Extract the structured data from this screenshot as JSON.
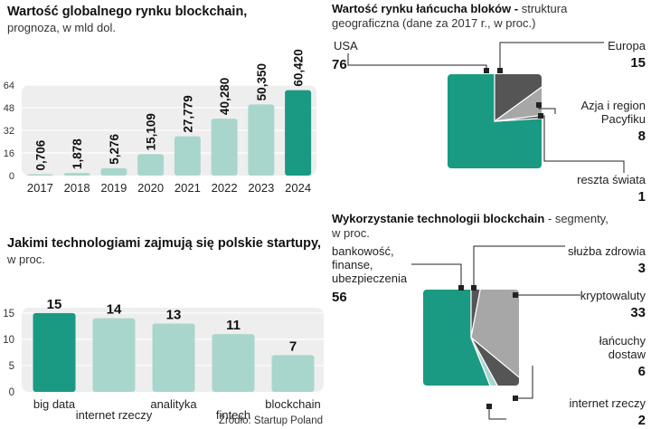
{
  "colors": {
    "teal": "#1a9a82",
    "light_teal": "#a9d6cc",
    "dark_gray": "#555555",
    "mid_gray": "#a7a7a7",
    "panel_bg": "#eeeeee",
    "grid": "#ffffff"
  },
  "chart_data": [
    {
      "id": "market",
      "type": "bar",
      "title": "Wartość globalnego rynku blockchain,",
      "subtitle": "prognoza, w mld dol.",
      "categories": [
        "2017",
        "2018",
        "2019",
        "2020",
        "2021",
        "2022",
        "2023",
        "2024"
      ],
      "values": [
        0.706,
        1.878,
        5.276,
        15.109,
        27.779,
        40.28,
        50.35,
        60.42
      ],
      "value_labels": [
        "0,706",
        "1,878",
        "5,276",
        "15,109",
        "27,779",
        "40,280",
        "50,350",
        "60,420"
      ],
      "yticks": [
        "0",
        "16",
        "32",
        "48",
        "64"
      ],
      "ylim": [
        0,
        64
      ],
      "highlight_index": 7
    },
    {
      "id": "geo",
      "type": "pie",
      "title": "Wartość rynku łańcucha bloków - ",
      "title_rest": "struktura",
      "subtitle": "geograficzna (dane za 2017 r., w proc.)",
      "slices": [
        {
          "label": "USA",
          "value": 76
        },
        {
          "label": "Europa",
          "value": 15
        },
        {
          "label": "Azja i region Pacyfiku",
          "label_lines": [
            "Azja i region",
            "Pacyfiku"
          ],
          "value": 8
        },
        {
          "label": "reszta świata",
          "value": 1
        }
      ]
    },
    {
      "id": "startups",
      "type": "bar",
      "title": "Jakimi technologiami zajmują się polskie startupy,",
      "subtitle": "w proc.",
      "categories": [
        "big data",
        "internet rzeczy",
        "analityka",
        "fintech",
        "blockchain"
      ],
      "values": [
        15,
        14,
        13,
        11,
        7
      ],
      "yticks": [
        "0",
        "5",
        "10",
        "15"
      ],
      "ylim": [
        0,
        16
      ],
      "highlight_index": 0,
      "source": "Źródło: Startup Poland"
    },
    {
      "id": "segments",
      "type": "pie",
      "title": "Wykorzystanie technologii blockchain",
      "title_rest": " - segmenty,",
      "subtitle": "w proc.",
      "slices": [
        {
          "label": "bankowość, finanse, ubezpieczenia",
          "label_lines": [
            "bankowość,",
            "finanse,",
            "ubezpieczenia"
          ],
          "value": 56
        },
        {
          "label": "służba zdrowia",
          "value": 3
        },
        {
          "label": "kryptowaluty",
          "value": 33
        },
        {
          "label": "łańcuchy dostaw",
          "label_lines": [
            "łańcuchy",
            "dostaw"
          ],
          "value": 6
        },
        {
          "label": "internet rzeczy",
          "value": 2
        }
      ]
    }
  ]
}
